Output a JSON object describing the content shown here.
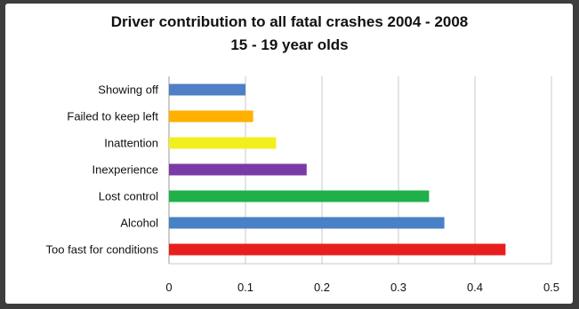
{
  "chart_data": {
    "type": "bar",
    "orientation": "horizontal",
    "title": "Driver contribution to all fatal crashes 2004 - 2008",
    "subtitle": "15 - 19 year olds",
    "categories": [
      "Showing off",
      "Failed to keep left",
      "Inattention",
      "Inexperience",
      "Lost control",
      "Alcohol",
      "Too fast for conditions"
    ],
    "values": [
      0.1,
      0.11,
      0.14,
      0.18,
      0.34,
      0.36,
      0.44
    ],
    "colors": [
      "#4f7fc4",
      "#ffb000",
      "#f2ef1f",
      "#7a3aa8",
      "#1fb04a",
      "#4a80c6",
      "#e81e1e"
    ],
    "xlim": [
      0,
      0.5
    ],
    "xticks": [
      "0",
      "0.1",
      "0.2",
      "0.3",
      "0.4",
      "0.5"
    ],
    "xtick_values": [
      0,
      0.1,
      0.2,
      0.3,
      0.4,
      0.5
    ],
    "grid": "vertical",
    "legend": "none"
  }
}
